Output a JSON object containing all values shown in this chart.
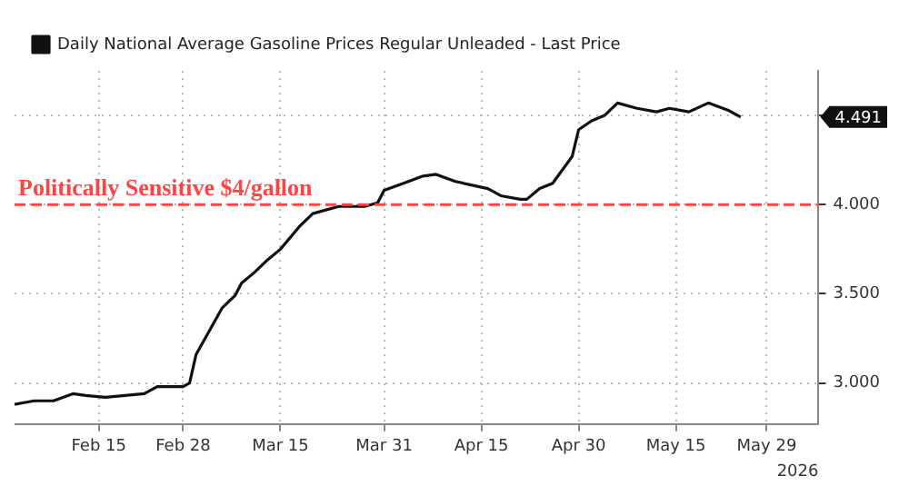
{
  "chart_data": {
    "type": "line",
    "xlabel": "2026",
    "legend": "top left",
    "grid": true,
    "line_style": "solid",
    "marker": "none",
    "x": [
      "2026-02-02",
      "2026-02-05",
      "2026-02-08",
      "2026-02-11",
      "2026-02-13",
      "2026-02-16",
      "2026-02-19",
      "2026-02-22",
      "2026-02-24",
      "2026-02-28",
      "2026-03-01",
      "2026-03-02",
      "2026-03-04",
      "2026-03-06",
      "2026-03-08",
      "2026-03-09",
      "2026-03-11",
      "2026-03-13",
      "2026-03-15",
      "2026-03-18",
      "2026-03-20",
      "2026-03-24",
      "2026-03-28",
      "2026-03-30",
      "2026-03-31",
      "2026-04-03",
      "2026-04-06",
      "2026-04-08",
      "2026-04-11",
      "2026-04-16",
      "2026-04-18",
      "2026-04-21",
      "2026-04-22",
      "2026-04-24",
      "2026-04-26",
      "2026-04-29",
      "2026-04-30",
      "2026-05-02",
      "2026-05-04",
      "2026-05-06",
      "2026-05-09",
      "2026-05-12",
      "2026-05-14",
      "2026-05-17",
      "2026-05-20",
      "2026-05-23",
      "2026-05-25"
    ],
    "series": [
      {
        "name": "Daily National Average Gasoline Prices Regular Unleaded - Last Price",
        "color": "#111111",
        "values": [
          2.88,
          2.9,
          2.9,
          2.94,
          2.93,
          2.92,
          2.93,
          2.94,
          2.98,
          2.98,
          3.0,
          3.16,
          3.29,
          3.42,
          3.49,
          3.56,
          3.62,
          3.69,
          3.75,
          3.88,
          3.95,
          3.99,
          3.99,
          4.01,
          4.08,
          4.12,
          4.16,
          4.17,
          4.13,
          4.09,
          4.05,
          4.03,
          4.03,
          4.09,
          4.12,
          4.27,
          4.42,
          4.47,
          4.5,
          4.57,
          4.54,
          4.52,
          4.54,
          4.52,
          4.57,
          4.53,
          4.491
        ]
      }
    ],
    "xlim": [
      "2026-02-02",
      "2026-06-06"
    ],
    "xticks": [
      {
        "value": "2026-02-15",
        "label": "Feb 15"
      },
      {
        "value": "2026-02-28",
        "label": "Feb 28"
      },
      {
        "value": "2026-03-15",
        "label": "Mar 15"
      },
      {
        "value": "2026-03-31",
        "label": "Mar 31"
      },
      {
        "value": "2026-04-15",
        "label": "Apr 15"
      },
      {
        "value": "2026-04-30",
        "label": "Apr 30"
      },
      {
        "value": "2026-05-15",
        "label": "May 15"
      },
      {
        "value": "2026-05-29",
        "label": "May 29"
      }
    ],
    "ylim": [
      2.77,
      4.75
    ],
    "yticks": [
      {
        "value": 3,
        "label": "3.000"
      },
      {
        "value": 3.5,
        "label": "3.500"
      },
      {
        "value": 4,
        "label": "4.000"
      },
      {
        "value": 4.5,
        "label": null
      }
    ],
    "ref_lines": [
      {
        "axis": "y",
        "value": 4,
        "label": "Politically Sensitive $4/gallon",
        "color": "#ff4444",
        "line_style": "dashed"
      }
    ],
    "annotations": [
      "4.491"
    ]
  }
}
